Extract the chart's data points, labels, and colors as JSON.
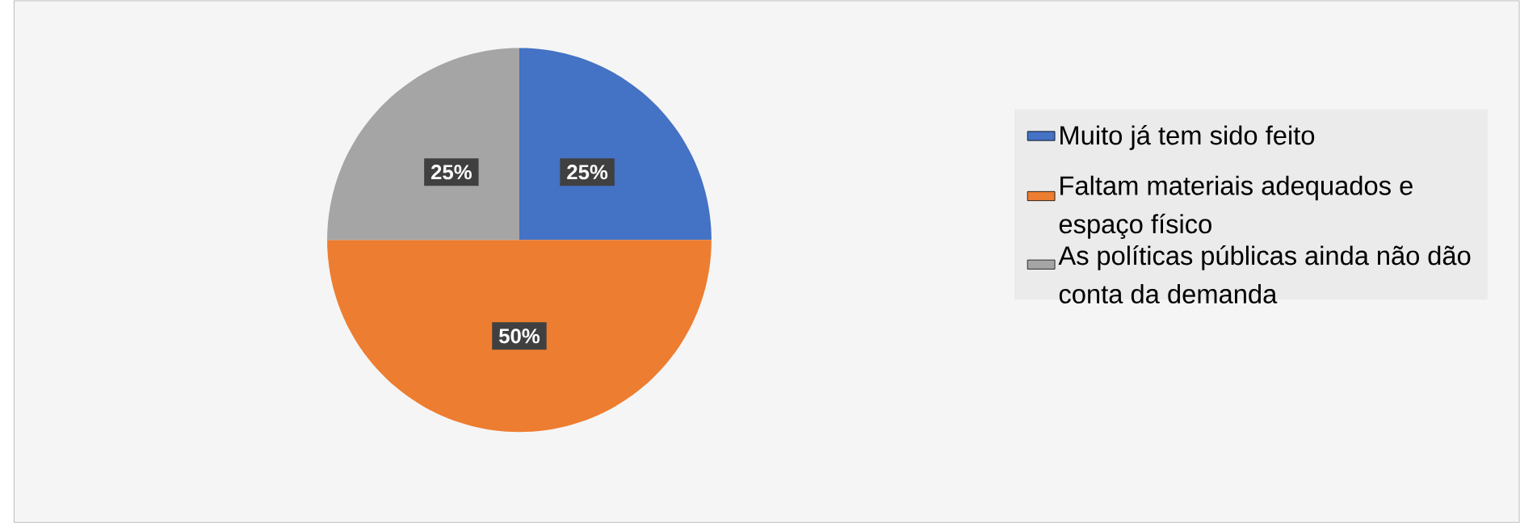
{
  "chart_data": {
    "type": "pie",
    "categories": [
      "Muito já tem sido feito",
      "Faltam materiais adequados e espaço físico",
      "As políticas públicas ainda não dão conta da demanda"
    ],
    "values": [
      25,
      50,
      25
    ],
    "colors": [
      "#4472c4",
      "#ed7d31",
      "#a5a5a5"
    ],
    "value_labels": [
      "25%",
      "50%",
      "25%"
    ],
    "legend": "right"
  }
}
